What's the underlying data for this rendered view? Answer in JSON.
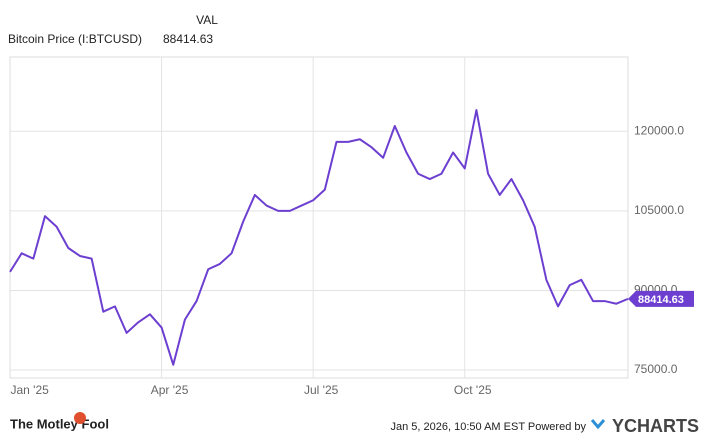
{
  "chart_data": {
    "type": "line",
    "value_header": "VAL",
    "categories": [
      null,
      "Jan '25",
      null,
      null,
      null,
      null,
      null,
      null,
      null,
      null,
      null,
      null,
      null,
      "Apr '25",
      null,
      null,
      null,
      null,
      null,
      null,
      null,
      null,
      null,
      null,
      null,
      null,
      "Jul '25",
      null,
      null,
      null,
      null,
      null,
      null,
      null,
      null,
      null,
      null,
      null,
      null,
      "Oct '25",
      null,
      null,
      null,
      null,
      null,
      null,
      null,
      null,
      null,
      null,
      null,
      null,
      null,
      null
    ],
    "series": [
      {
        "name": "Bitcoin Price (I:BTCUSD)",
        "color": "#6c3fd1",
        "values": [
          93500,
          97000,
          96000,
          104000,
          102000,
          98000,
          96500,
          96000,
          86000,
          87000,
          82000,
          84000,
          85500,
          83000,
          76000,
          84500,
          88000,
          94000,
          95000,
          97000,
          103000,
          108000,
          106000,
          105000,
          105000,
          106000,
          107000,
          109000,
          118000,
          118000,
          118500,
          117000,
          115000,
          121000,
          116000,
          112000,
          111000,
          112000,
          116000,
          113000,
          124000,
          112000,
          108000,
          111000,
          107000,
          102000,
          92000,
          87000,
          91000,
          92000,
          88000,
          88000,
          87500,
          88414.63
        ]
      }
    ],
    "ylim": [
      73500,
      134000
    ],
    "yticks": [
      {
        "value": 75000,
        "label": "75000.0"
      },
      {
        "value": 90000,
        "label": "90000.0"
      },
      {
        "value": 105000,
        "label": "105000.0"
      },
      {
        "value": 120000,
        "label": "120000.0"
      }
    ],
    "grid": true
  },
  "footer": {
    "brand": "The Motley Fool",
    "timestamp": "Jan 5, 2026, 10:50 AM EST  Powered by",
    "provider": "YCHARTS"
  }
}
